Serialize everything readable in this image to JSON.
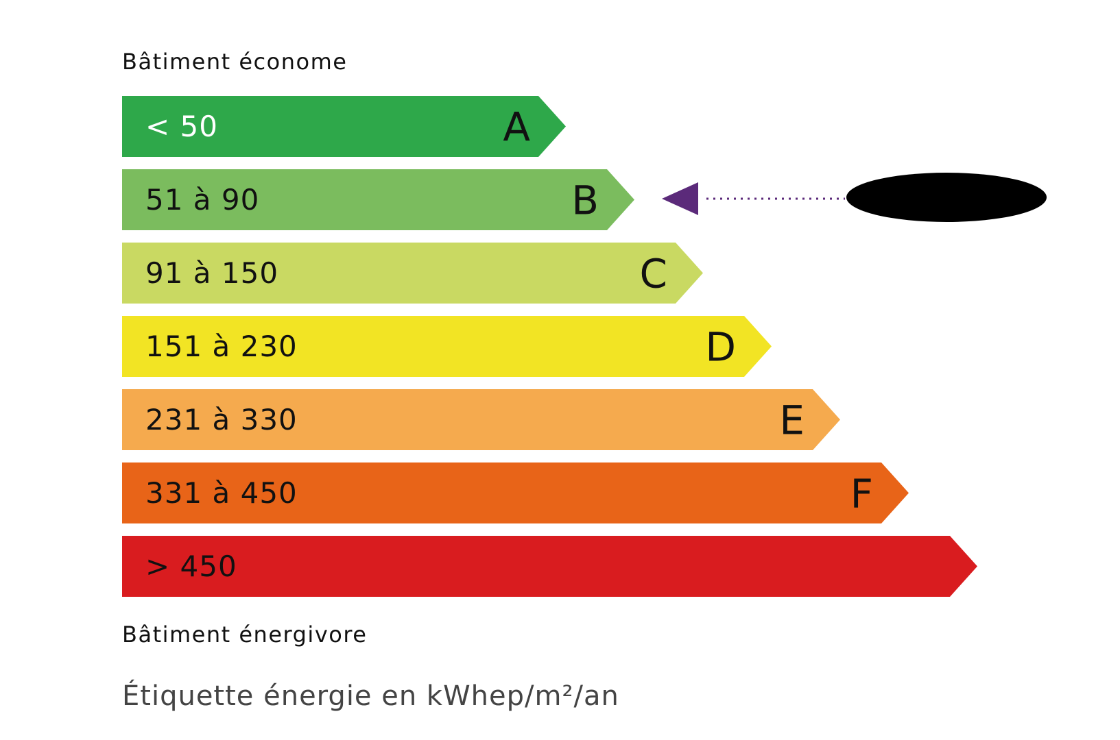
{
  "header": {
    "top": "Bâtiment économe"
  },
  "classes": [
    {
      "range": "< 50",
      "letter": "A",
      "color": "#2ea84a",
      "text_color": "#ffffff"
    },
    {
      "range": "51 à 90",
      "letter": "B",
      "color": "#7bbc5e",
      "text_color": "#111111"
    },
    {
      "range": "91 à 150",
      "letter": "C",
      "color": "#c9d962",
      "text_color": "#111111"
    },
    {
      "range": "151 à 230",
      "letter": "D",
      "color": "#f2e424",
      "text_color": "#111111"
    },
    {
      "range": "231 à 330",
      "letter": "E",
      "color": "#f5aa4e",
      "text_color": "#111111"
    },
    {
      "range": "331 à 450",
      "letter": "F",
      "color": "#e86418",
      "text_color": "#111111"
    },
    {
      "range": "> 450",
      "color": "#d91c1f",
      "text_color": "#111111"
    }
  ],
  "footer": {
    "bottom": "Bâtiment énergivore",
    "caption": "Étiquette énergie en kWhep/m²/an"
  }
}
